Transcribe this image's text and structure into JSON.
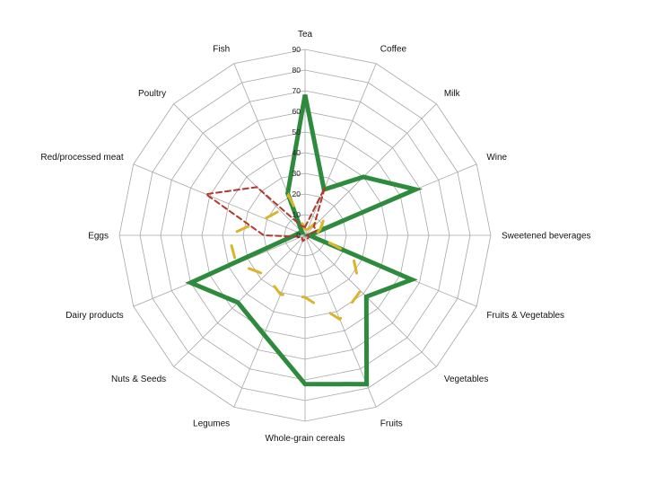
{
  "chart_data": {
    "type": "radar",
    "title": "",
    "categories": [
      "Tea",
      "Coffee",
      "Milk",
      "Wine",
      "Sweetened beverages",
      "Fruits & Vegetables",
      "Vegetables",
      "Fruits",
      "Whole-grain cereals",
      "Legumes",
      "Nuts & Seeds",
      "Dairy products",
      "Eggs",
      "Red/processed meat",
      "Poultry",
      "Fish"
    ],
    "radial_ticks": [
      0,
      10,
      20,
      30,
      40,
      50,
      60,
      70,
      80,
      90
    ],
    "rmax": 90,
    "grid": true,
    "legend": "none",
    "series": [
      {
        "values": [
          68,
          24,
          40,
          58,
          2,
          56,
          42,
          78,
          72,
          52,
          46,
          60,
          5,
          3,
          2,
          22
        ],
        "color": "#2e8b3e",
        "style": "solid",
        "width": 5
      },
      {
        "values": [
          3,
          3,
          14,
          8,
          5,
          25,
          38,
          44,
          30,
          31,
          27,
          36,
          37,
          21,
          17,
          21
        ],
        "color": "#d9b52a",
        "style": "dashed",
        "width": 3
      },
      {
        "values": [
          4,
          25,
          6,
          6,
          1,
          2,
          2,
          2,
          2,
          3,
          2,
          2,
          20,
          52,
          33,
          5
        ],
        "color": "#b03a2e",
        "style": "dashed",
        "width": 2
      }
    ]
  }
}
